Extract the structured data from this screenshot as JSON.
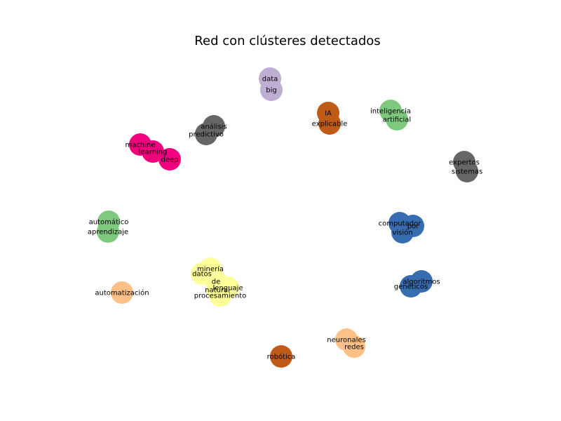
{
  "title": "Red con clústeres detectados",
  "colors": {
    "purple": "#beaed4",
    "orange": "#bf5b17",
    "green": "#7fc97f",
    "magenta": "#f0027f",
    "gray": "#666666",
    "blue": "#386cb0",
    "yellow": "#ffff99",
    "peach": "#fdc086"
  },
  "clusters": [
    {
      "color": "purple",
      "nodes": [
        "data",
        "big"
      ]
    },
    {
      "color": "orange",
      "nodes": [
        "IA",
        "explicable"
      ]
    },
    {
      "color": "green",
      "nodes": [
        "inteligencia",
        "artificial"
      ]
    },
    {
      "color": "gray",
      "nodes": [
        "análisis",
        "predictivo"
      ]
    },
    {
      "color": "magenta",
      "nodes": [
        "machine",
        "learning",
        "deep"
      ]
    },
    {
      "color": "gray",
      "nodes": [
        "expertos",
        "sistemas"
      ]
    },
    {
      "color": "green",
      "nodes": [
        "automático",
        "aprendizaje"
      ]
    },
    {
      "color": "blue",
      "nodes": [
        "computador",
        "por",
        "visión"
      ]
    },
    {
      "color": "yellow",
      "nodes": [
        "minería",
        "datos",
        "de",
        "lenguaje",
        "natural",
        "procesamiento"
      ]
    },
    {
      "color": "blue",
      "nodes": [
        "algoritmos",
        "genéticos"
      ]
    },
    {
      "color": "peach",
      "nodes": [
        "automatización"
      ]
    },
    {
      "color": "peach",
      "nodes": [
        "neuronales",
        "redes"
      ]
    },
    {
      "color": "orange",
      "nodes": [
        "robótica"
      ]
    }
  ]
}
